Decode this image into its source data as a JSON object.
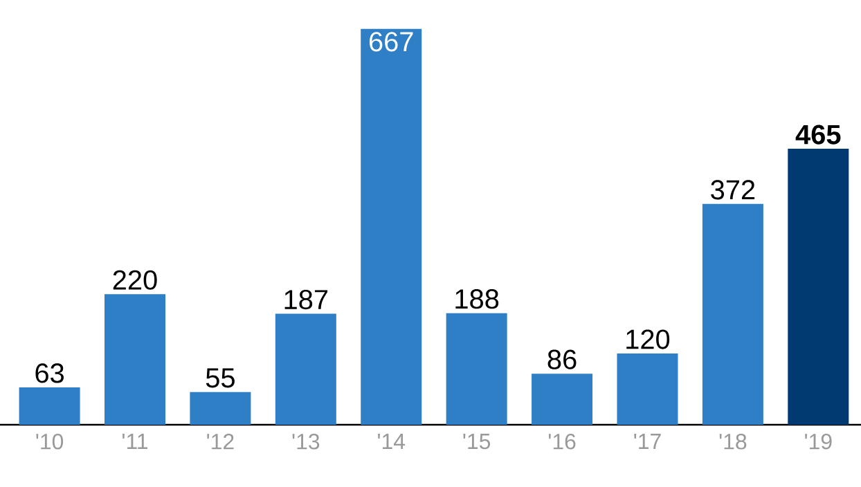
{
  "chart_data": {
    "type": "bar",
    "categories": [
      "'10",
      "'11",
      "'12",
      "'13",
      "'14",
      "'15",
      "'16",
      "'17",
      "'18",
      "'19"
    ],
    "values": [
      63,
      220,
      55,
      187,
      667,
      188,
      86,
      120,
      372,
      465
    ],
    "colors": [
      "#2e7fc6",
      "#2e7fc6",
      "#2e7fc6",
      "#2e7fc6",
      "#2e7fc6",
      "#2e7fc6",
      "#2e7fc6",
      "#2e7fc6",
      "#2e7fc6",
      "#003a70"
    ],
    "data_labels": true
  }
}
